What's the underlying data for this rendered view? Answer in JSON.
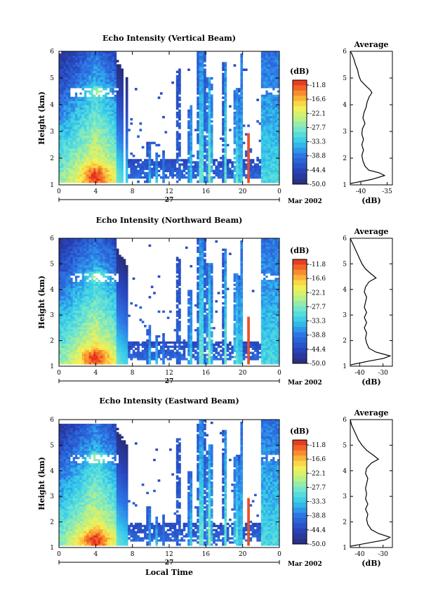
{
  "chart_data": [
    {
      "type": "heatmap",
      "title": "Echo Intensity (Vertical Beam)",
      "ylabel": "Height (km)",
      "xticks": [
        "0",
        "4",
        "8",
        "12",
        "16",
        "20",
        "0"
      ],
      "yticks": [
        "1",
        "2",
        "3",
        "4",
        "5",
        "6"
      ],
      "xlim": [
        0,
        24
      ],
      "ylim": [
        1,
        6
      ],
      "date_label": "27",
      "month_label": "Mar 2002",
      "colorbar": {
        "unit": "(dB)",
        "levels": [
          "-11.8",
          "-16.6",
          "-22.1",
          "-27.7",
          "-33.3",
          "-38.8",
          "-44.4",
          "-50.0"
        ]
      },
      "avg_profile": {
        "title": "Average",
        "xlabel": "(dB)",
        "xticks": [
          "-40",
          "-35"
        ],
        "xlim": [
          -42,
          -34
        ],
        "height": [
          1.05,
          1.2,
          1.35,
          1.45,
          1.55,
          1.7,
          1.9,
          2.1,
          2.3,
          2.5,
          2.7,
          2.9,
          3.1,
          3.3,
          3.5,
          3.7,
          3.9,
          4.1,
          4.3,
          4.45,
          4.55,
          4.7,
          4.9,
          5.1,
          5.3,
          5.5,
          5.7,
          5.9,
          6.0
        ],
        "db": [
          -42,
          -38,
          -35.5,
          -36.5,
          -38.5,
          -39.2,
          -39.6,
          -39.8,
          -39.5,
          -39.8,
          -39.5,
          -39.8,
          -39.7,
          -39.2,
          -39.6,
          -39.4,
          -39.0,
          -38.8,
          -38.4,
          -37.9,
          -38.2,
          -39.0,
          -40.0,
          -40.4,
          -40.6,
          -41.0,
          -41.3,
          -41.7,
          -42
        ]
      }
    },
    {
      "type": "heatmap",
      "title": "Echo Intensity (Northward Beam)",
      "ylabel": "Height (km)",
      "xticks": [
        "0",
        "4",
        "8",
        "12",
        "16",
        "20",
        "0"
      ],
      "yticks": [
        "1",
        "2",
        "3",
        "4",
        "5",
        "6"
      ],
      "xlim": [
        0,
        24
      ],
      "ylim": [
        1,
        6
      ],
      "date_label": "27",
      "month_label": "Mar 2002",
      "colorbar": {
        "unit": "(dB)",
        "levels": [
          "-11.8",
          "-16.6",
          "-22.1",
          "-27.7",
          "-33.3",
          "-38.8",
          "-44.4",
          "-50.0"
        ]
      },
      "avg_profile": {
        "title": "Average",
        "xlabel": "(dB)",
        "xticks": [
          "-40",
          "-30"
        ],
        "xlim": [
          -44,
          -26
        ],
        "height": [
          1.05,
          1.2,
          1.3,
          1.4,
          1.55,
          1.7,
          1.9,
          2.1,
          2.3,
          2.5,
          2.7,
          2.9,
          3.1,
          3.3,
          3.5,
          3.7,
          3.9,
          4.1,
          4.3,
          4.45,
          4.6,
          4.8,
          5.0,
          5.2,
          5.4,
          5.6,
          5.8,
          6.0
        ],
        "db": [
          -44,
          -36,
          -30,
          -27,
          -33,
          -36,
          -37,
          -37.5,
          -37,
          -38,
          -37,
          -38,
          -37,
          -38,
          -37.5,
          -37,
          -38,
          -37.5,
          -36,
          -33,
          -35,
          -37.5,
          -39,
          -40,
          -41,
          -42,
          -43,
          -44
        ]
      }
    },
    {
      "type": "heatmap",
      "title": "Echo Intensity (Eastward Beam)",
      "ylabel": "Height (km)",
      "xlabel": "Local Time",
      "xticks": [
        "0",
        "4",
        "8",
        "12",
        "16",
        "20",
        "0"
      ],
      "yticks": [
        "1",
        "2",
        "3",
        "4",
        "5",
        "6"
      ],
      "xlim": [
        0,
        24
      ],
      "ylim": [
        1,
        6
      ],
      "date_label": "27",
      "month_label": "Mar 2002",
      "colorbar": {
        "unit": "(dB)",
        "levels": [
          "-11.8",
          "-16.6",
          "-22.1",
          "-27.7",
          "-33.3",
          "-38.8",
          "-44.4",
          "-50.0"
        ]
      },
      "avg_profile": {
        "title": "Average",
        "xlabel": "(dB)",
        "xticks": [
          "-40",
          "-30"
        ],
        "xlim": [
          -44,
          -26
        ],
        "height": [
          1.05,
          1.2,
          1.3,
          1.4,
          1.55,
          1.7,
          1.9,
          2.1,
          2.3,
          2.5,
          2.7,
          2.9,
          3.1,
          3.3,
          3.5,
          3.7,
          3.9,
          4.1,
          4.3,
          4.45,
          4.6,
          4.8,
          5.0,
          5.2,
          5.4,
          5.6,
          5.8,
          6.0
        ],
        "db": [
          -44,
          -35,
          -29,
          -27,
          -32,
          -35,
          -36.5,
          -37,
          -36.5,
          -37.5,
          -36.5,
          -37.5,
          -37,
          -37.5,
          -37,
          -36.5,
          -37.5,
          -37,
          -35,
          -32,
          -34,
          -37,
          -39,
          -40.5,
          -41.5,
          -42.5,
          -43.5,
          -44
        ]
      }
    }
  ]
}
